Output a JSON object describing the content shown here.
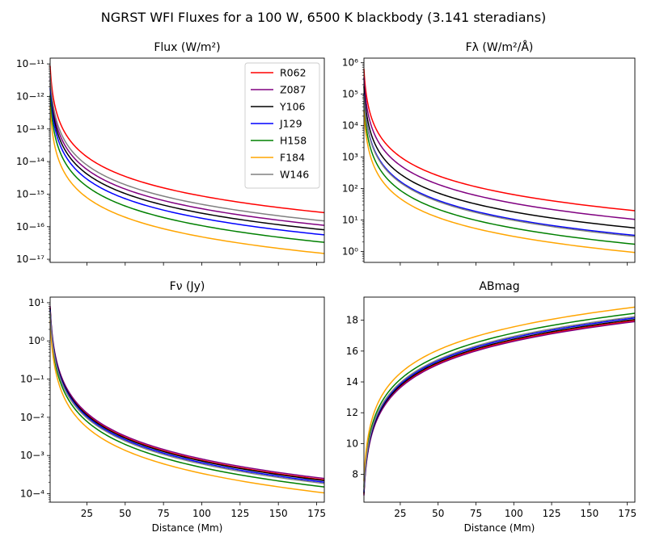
{
  "figure": {
    "suptitle": "NGRST WFI Fluxes for a 100 W, 6500 K blackbody (3.141 steradians)"
  },
  "bands": [
    {
      "name": "R062",
      "color": "#ff0000"
    },
    {
      "name": "Z087",
      "color": "#800080"
    },
    {
      "name": "Y106",
      "color": "#000000"
    },
    {
      "name": "J129",
      "color": "#0000ff"
    },
    {
      "name": "H158",
      "color": "#008000"
    },
    {
      "name": "F184",
      "color": "#ffa500"
    },
    {
      "name": "W146",
      "color": "#808080"
    }
  ],
  "chart_data": [
    {
      "type": "line",
      "title": "Flux (W/m²)",
      "xlabel": "",
      "ylabel": "",
      "yscale": "log",
      "xlim": [
        1,
        180
      ],
      "ylim": [
        8e-18,
        1.5e-11
      ],
      "xticks": [
        25,
        50,
        75,
        100,
        125,
        150,
        175
      ],
      "xticklabels_shown": false,
      "yticks_exp": [
        -17,
        -16,
        -15,
        -14,
        -13,
        -12,
        -11
      ],
      "legend": "upper right",
      "legend_entries": [
        "R062",
        "Z087",
        "Y106",
        "J129",
        "H158",
        "F184",
        "W146"
      ],
      "series": [
        {
          "name": "R062",
          "color": "#ff0000",
          "x": [
            1,
            180
          ],
          "y": [
            8.7e-12,
            2.7e-16
          ]
        },
        {
          "name": "Z087",
          "color": "#800080",
          "x": [
            1,
            180
          ],
          "y": [
            3.6e-12,
            1.1e-16
          ]
        },
        {
          "name": "Y106",
          "color": "#000000",
          "x": [
            1,
            180
          ],
          "y": [
            2.6e-12,
            8e-17
          ]
        },
        {
          "name": "J129",
          "color": "#0000ff",
          "x": [
            1,
            180
          ],
          "y": [
            1.8e-12,
            5.6e-17
          ]
        },
        {
          "name": "H158",
          "color": "#008000",
          "x": [
            1,
            180
          ],
          "y": [
            1.1e-12,
            3.3e-17
          ]
        },
        {
          "name": "F184",
          "color": "#ffa500",
          "x": [
            1,
            180
          ],
          "y": [
            4.9e-13,
            1.5e-17
          ]
        },
        {
          "name": "W146",
          "color": "#808080",
          "x": [
            1,
            180
          ],
          "y": [
            4.9e-12,
            1.5e-16
          ]
        }
      ]
    },
    {
      "type": "line",
      "title": "Fλ (W/m²/Å)",
      "xlabel": "",
      "ylabel": "",
      "yscale": "log",
      "xlim": [
        1,
        180
      ],
      "ylim": [
        0.45,
        1400000.0
      ],
      "xticks": [
        25,
        50,
        75,
        100,
        125,
        150,
        175
      ],
      "xticklabels_shown": false,
      "yticks_exp": [
        0,
        1,
        2,
        3,
        4,
        5,
        6
      ],
      "legend": "none",
      "series": [
        {
          "name": "R062",
          "color": "#ff0000",
          "x": [
            1,
            180
          ],
          "y": [
            640000,
            19.8
          ]
        },
        {
          "name": "Z087",
          "color": "#800080",
          "x": [
            1,
            180
          ],
          "y": [
            340000,
            10.5
          ]
        },
        {
          "name": "Y106",
          "color": "#000000",
          "x": [
            1,
            180
          ],
          "y": [
            180000,
            5.6
          ]
        },
        {
          "name": "J129",
          "color": "#0000ff",
          "x": [
            1,
            180
          ],
          "y": [
            105000,
            3.25
          ]
        },
        {
          "name": "H158",
          "color": "#008000",
          "x": [
            1,
            180
          ],
          "y": [
            55000,
            1.7
          ]
        },
        {
          "name": "F184",
          "color": "#ffa500",
          "x": [
            1,
            180
          ],
          "y": [
            30000,
            0.93
          ]
        },
        {
          "name": "W146",
          "color": "#808080",
          "x": [
            1,
            180
          ],
          "y": [
            97000,
            3.0
          ]
        }
      ]
    },
    {
      "type": "line",
      "title": "Fν (Jy)",
      "xlabel": "Distance (Mm)",
      "ylabel": "",
      "yscale": "log",
      "xlim": [
        1,
        180
      ],
      "ylim": [
        6e-05,
        14
      ],
      "xticks": [
        25,
        50,
        75,
        100,
        125,
        150,
        175
      ],
      "xticklabels_shown": true,
      "yticks_exp": [
        -4,
        -3,
        -2,
        -1,
        0,
        1
      ],
      "legend": "none",
      "series": [
        {
          "name": "R062",
          "color": "#ff0000",
          "x": [
            1,
            180
          ],
          "y": [
            7.5,
            0.00023
          ]
        },
        {
          "name": "Z087",
          "color": "#800080",
          "x": [
            1,
            180
          ],
          "y": [
            8.1,
            0.00025
          ]
        },
        {
          "name": "Y106",
          "color": "#000000",
          "x": [
            1,
            180
          ],
          "y": [
            7.1,
            0.00022
          ]
        },
        {
          "name": "J129",
          "color": "#0000ff",
          "x": [
            1,
            180
          ],
          "y": [
            6.5,
            0.0002
          ]
        },
        {
          "name": "H158",
          "color": "#008000",
          "x": [
            1,
            180
          ],
          "y": [
            4.9,
            0.00015
          ]
        },
        {
          "name": "F184",
          "color": "#ffa500",
          "x": [
            1,
            180
          ],
          "y": [
            3.4,
            0.000105
          ]
        },
        {
          "name": "W146",
          "color": "#808080",
          "x": [
            1,
            180
          ],
          "y": [
            6.0,
            0.000185
          ]
        }
      ]
    },
    {
      "type": "line",
      "title": "ABmag",
      "xlabel": "Distance (Mm)",
      "ylabel": "",
      "yscale": "linear",
      "xlim": [
        1,
        180
      ],
      "ylim": [
        6.2,
        19.5
      ],
      "xticks": [
        25,
        50,
        75,
        100,
        125,
        150,
        175
      ],
      "xticklabels_shown": true,
      "yticks": [
        8,
        10,
        12,
        14,
        16,
        18
      ],
      "legend": "none",
      "series": [
        {
          "name": "R062",
          "color": "#ff0000",
          "x": [
            1,
            180
          ],
          "y": [
            6.7,
            17.97
          ]
        },
        {
          "name": "Z087",
          "color": "#800080",
          "x": [
            1,
            180
          ],
          "y": [
            6.63,
            17.91
          ]
        },
        {
          "name": "Y106",
          "color": "#000000",
          "x": [
            1,
            180
          ],
          "y": [
            6.77,
            18.05
          ]
        },
        {
          "name": "J129",
          "color": "#0000ff",
          "x": [
            1,
            180
          ],
          "y": [
            6.87,
            18.15
          ]
        },
        {
          "name": "H158",
          "color": "#008000",
          "x": [
            1,
            180
          ],
          "y": [
            7.17,
            18.45
          ]
        },
        {
          "name": "F184",
          "color": "#ffa500",
          "x": [
            1,
            180
          ],
          "y": [
            7.57,
            18.85
          ]
        },
        {
          "name": "W146",
          "color": "#808080",
          "x": [
            1,
            180
          ],
          "y": [
            6.95,
            18.23
          ]
        }
      ]
    }
  ]
}
